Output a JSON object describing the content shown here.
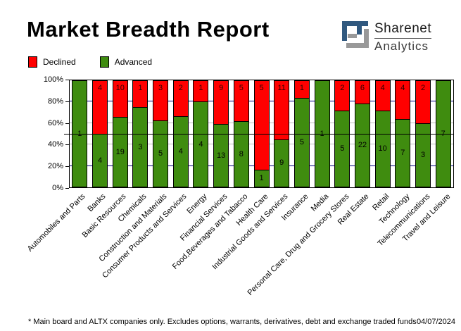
{
  "header": {
    "title": "Market Breadth Report",
    "logo": {
      "name1": "Sharenet",
      "name2": "Analytics",
      "icon_blue": "#31597f",
      "icon_gray": "#999999"
    }
  },
  "legend": {
    "items": [
      {
        "label": "Declined",
        "color": "#ff0000"
      },
      {
        "label": "Advanced",
        "color": "#3f8c0f"
      }
    ]
  },
  "chart_data": {
    "type": "bar",
    "variant": "stacked-percent-column",
    "title": "Market Breadth Report",
    "categories": [
      "Automobiles and Parts",
      "Banks",
      "Basic Resources",
      "Chemicals",
      "Construction and Materials",
      "Consumer Products and Services",
      "Energy",
      "Financial Services",
      "Food,Beverages and Tabacco",
      "Health Care",
      "Industrial Goods and Services",
      "Insurance",
      "Media",
      "Personal Care, Drug and Grocery Stores",
      "Real Estate",
      "Retail",
      "Technology",
      "Telecommunications",
      "Travel and Leisure"
    ],
    "series": [
      {
        "name": "Declined",
        "color": "#ff0000",
        "values": [
          0,
          4,
          10,
          1,
          3,
          2,
          1,
          9,
          5,
          5,
          11,
          1,
          0,
          2,
          6,
          4,
          4,
          2,
          0
        ]
      },
      {
        "name": "Advanced",
        "color": "#3f8c0f",
        "values": [
          1,
          4,
          19,
          3,
          5,
          4,
          4,
          13,
          8,
          1,
          9,
          5,
          1,
          5,
          22,
          10,
          7,
          3,
          7
        ]
      }
    ],
    "ylim": [
      0,
      100
    ],
    "y_ticks": [
      {
        "label": "100%",
        "pct": 100
      },
      {
        "label": "80%",
        "pct": 80
      },
      {
        "label": "60%",
        "pct": 60
      },
      {
        "label": "40%",
        "pct": 40
      },
      {
        "label": "20%",
        "pct": 20
      },
      {
        "label": "0%",
        "pct": 0
      }
    ],
    "grid": [
      {
        "pct": 80,
        "color": "#000080"
      },
      {
        "pct": 60,
        "color": "#bdbdbd"
      },
      {
        "pct": 40,
        "color": "#bdbdbd"
      },
      {
        "pct": 20,
        "color": "#000080"
      }
    ],
    "reference_line": {
      "pct": 50,
      "color": "#000000"
    },
    "legend_position": "top-left",
    "bar_outline": "#000000"
  },
  "footer": {
    "note": "* Main board and ALTX companies only. Excludes options, warrants, derivatives, debt and exchange traded funds",
    "date": "04/07/2024"
  }
}
